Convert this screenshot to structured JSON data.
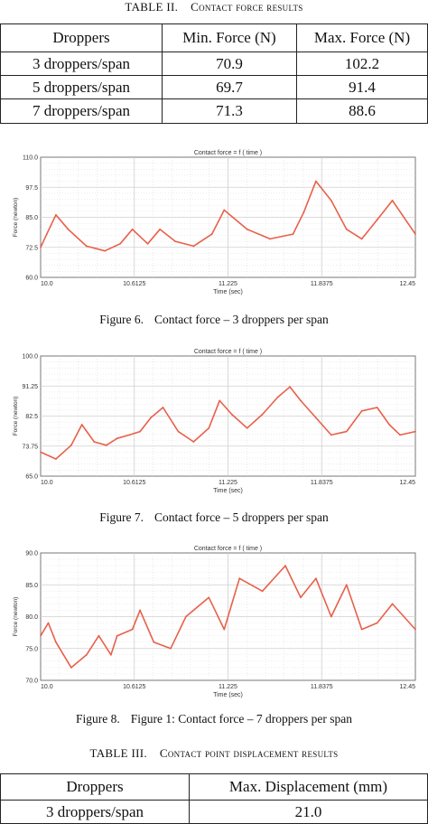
{
  "table2": {
    "label": "TABLE II.",
    "title": "Contact force results",
    "headers": [
      "Droppers",
      "Min. Force (N)",
      "Max. Force (N)"
    ],
    "rows": [
      [
        "3 droppers/span",
        "70.9",
        "102.2"
      ],
      [
        "5 droppers/span",
        "69.7",
        "91.4"
      ],
      [
        "7 droppers/span",
        "71.3",
        "88.6"
      ]
    ]
  },
  "figures": [
    {
      "label": "Figure 6.",
      "caption": "Contact force – 3 droppers per span"
    },
    {
      "label": "Figure 7.",
      "caption": "Contact force – 5 droppers per span"
    },
    {
      "label": "Figure 8.",
      "caption": "Figure 1: Contact force – 7 droppers per span"
    }
  ],
  "table3": {
    "label": "TABLE III.",
    "title": "Contact point displacement results",
    "headers": [
      "Droppers",
      "Max. Displacement (mm)"
    ],
    "rows": [
      [
        "3 droppers/span",
        "21.0"
      ]
    ]
  },
  "colors": {
    "line": "#e8604a",
    "grid": "#cfcfcf",
    "frame": "#777777"
  },
  "chart_data": [
    {
      "type": "line",
      "title": "Contact force = f ( time )",
      "xlabel": "Time (sec)",
      "ylabel": "Force (newton)",
      "xlim": [
        10.0,
        12.45
      ],
      "ylim": [
        60.0,
        110.0
      ],
      "xticks": [
        "10.0",
        "10.6125",
        "11.225",
        "11.8375",
        "12.45"
      ],
      "yticks": [
        "60.0",
        "72.5",
        "85.0",
        "97.5",
        "110.0"
      ],
      "grid": true,
      "series": [
        {
          "x": [
            10.0,
            10.04,
            10.1,
            10.18,
            10.3,
            10.42,
            10.52,
            10.6,
            10.7,
            10.78,
            10.88,
            11.0,
            11.12,
            11.2,
            11.35,
            11.5,
            11.65,
            11.72,
            11.8,
            11.9,
            12.0,
            12.1,
            12.2,
            12.3,
            12.45
          ],
          "y": [
            72.5,
            78,
            86,
            80,
            73,
            71,
            74,
            80,
            74,
            80,
            75,
            73,
            78,
            88,
            80,
            76,
            78,
            87,
            100,
            92,
            80,
            76,
            84,
            92,
            78
          ]
        }
      ]
    },
    {
      "type": "line",
      "title": "Contact force = f ( time )",
      "xlabel": "Time (sec)",
      "ylabel": "Force (newton)",
      "xlim": [
        10.0,
        12.45
      ],
      "ylim": [
        65.0,
        100.0
      ],
      "xticks": [
        "10.0",
        "10.6125",
        "11.225",
        "11.8375",
        "12.45"
      ],
      "yticks": [
        "65.0",
        "73.75",
        "82.5",
        "91.25",
        "100.0"
      ],
      "grid": true,
      "series": [
        {
          "x": [
            10.0,
            10.1,
            10.2,
            10.27,
            10.35,
            10.43,
            10.5,
            10.58,
            10.65,
            10.72,
            10.8,
            10.9,
            11.0,
            11.1,
            11.17,
            11.25,
            11.35,
            11.45,
            11.55,
            11.63,
            11.7,
            11.8,
            11.9,
            12.0,
            12.1,
            12.2,
            12.28,
            12.35,
            12.45
          ],
          "y": [
            72,
            70,
            74,
            80,
            75,
            74,
            76,
            77,
            78,
            82,
            85,
            78,
            75,
            79,
            87,
            83,
            79,
            83,
            88,
            91,
            87,
            82,
            77,
            78,
            84,
            85,
            80,
            77,
            78
          ]
        }
      ]
    },
    {
      "type": "line",
      "title": "Contact force = f ( time )",
      "xlabel": "Time (sec)",
      "ylabel": "Force (newton)",
      "xlim": [
        10.0,
        12.45
      ],
      "ylim": [
        70.0,
        90.0
      ],
      "xticks": [
        "10.0",
        "10.6125",
        "11.225",
        "11.8375",
        "12.45"
      ],
      "yticks": [
        "70.0",
        "75.0",
        "80.0",
        "85.0",
        "90.0"
      ],
      "grid": true,
      "series": [
        {
          "x": [
            10.0,
            10.05,
            10.1,
            10.2,
            10.3,
            10.38,
            10.46,
            10.5,
            10.6,
            10.65,
            10.74,
            10.85,
            10.95,
            11.1,
            11.2,
            11.3,
            11.45,
            11.6,
            11.7,
            11.8,
            11.9,
            12.0,
            12.1,
            12.2,
            12.3,
            12.45
          ],
          "y": [
            77,
            79,
            76,
            72,
            74,
            77,
            74,
            77,
            78,
            81,
            76,
            75,
            80,
            83,
            78,
            86,
            84,
            88,
            83,
            86,
            80,
            85,
            78,
            79,
            82,
            78
          ]
        }
      ]
    }
  ]
}
